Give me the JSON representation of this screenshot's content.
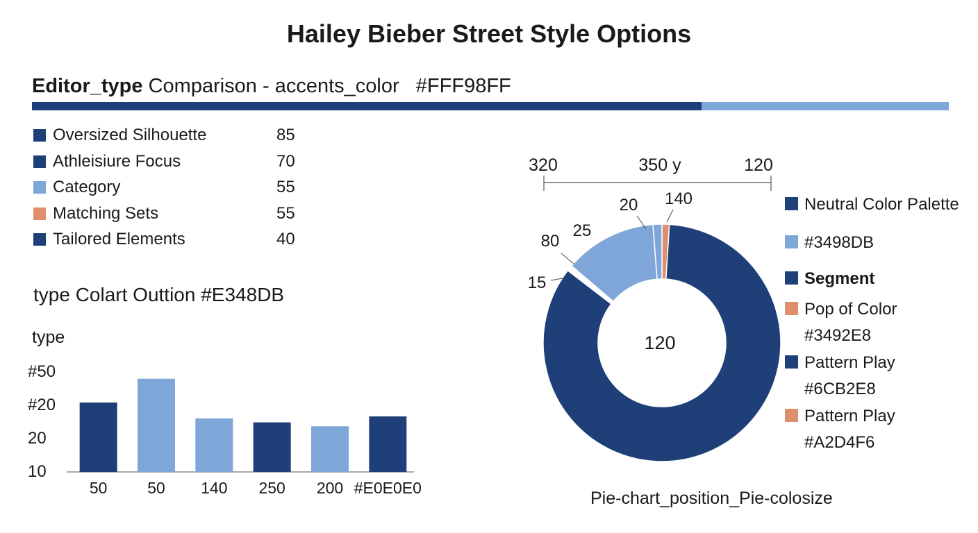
{
  "title": "Hailey Bieber Street Style Options",
  "subtitle": {
    "bold": "Editor_type",
    "rest": " Comparison - accents_color   #FFF98FF"
  },
  "progress": {
    "fraction": 0.73,
    "fill_color": "#1e3f78",
    "track_color": "#7ea6d8"
  },
  "style_list": [
    {
      "label": "Oversized Silhouette",
      "value": "85",
      "color": "#1e3f78"
    },
    {
      "label": "Athleisiure Focus",
      "value": "70",
      "color": "#1e3f78"
    },
    {
      "label": "Category",
      "value": "55",
      "color": "#7ea6d8"
    },
    {
      "label": "Matching Sets",
      "value": "55",
      "color": "#e08f6e"
    },
    {
      "label": "Tailored Elements",
      "value": "40",
      "color": "#1e3f78"
    }
  ],
  "bar_heading": "type Colart Outtion #E348DB",
  "pie_caption": "Pie-chart_position_Pie-colosize",
  "chart_data": [
    {
      "type": "bar",
      "ylabel": "type",
      "y_ticks": [
        "#50",
        "#20",
        "20",
        "10"
      ],
      "categories": [
        "50",
        "50",
        "140",
        "250",
        "200",
        "#E0E0E0"
      ],
      "values": [
        55,
        67,
        47,
        45,
        43,
        48
      ],
      "colors": [
        "#1e3f78",
        "#7ea6d8",
        "#7ea6d8",
        "#1e3f78",
        "#7ea6d8",
        "#1e3f78"
      ],
      "ylim": [
        20,
        90
      ]
    },
    {
      "type": "pie",
      "style": "donut",
      "center_label": "120",
      "range_labels": [
        "320",
        "350 y",
        "120"
      ],
      "slices": [
        {
          "label": "140",
          "value": 1.0,
          "color": "#e08f6e"
        },
        {
          "label": "",
          "value": 84.0,
          "color": "#1e3f78"
        },
        {
          "label": "15",
          "value": 0.4,
          "color": "#ffffff"
        },
        {
          "label": "80",
          "value": 0.4,
          "color": "#ffffff"
        },
        {
          "label": "25",
          "value": 12.5,
          "color": "#7ea6d8"
        },
        {
          "label": "20",
          "value": 1.2,
          "color": "#7ea6d8"
        }
      ],
      "legend": [
        {
          "label": "Neutral Color Palette",
          "color": "#1e3f78",
          "bold": false
        },
        {
          "label": "#3498DB",
          "color": "#7ea6d8",
          "bold": false
        },
        {
          "label": "Segment",
          "color": "#1e3f78",
          "bold": true
        },
        {
          "label": "Pop of Color\n#3492E8",
          "color": "#e08f6e",
          "bold": false
        },
        {
          "label": "Pattern Play\n#6CB2E8",
          "color": "#1e3f78",
          "bold": false
        },
        {
          "label": "Pattern Play\n#A2D4F6",
          "color": "#e08f6e",
          "bold": false
        }
      ]
    }
  ]
}
